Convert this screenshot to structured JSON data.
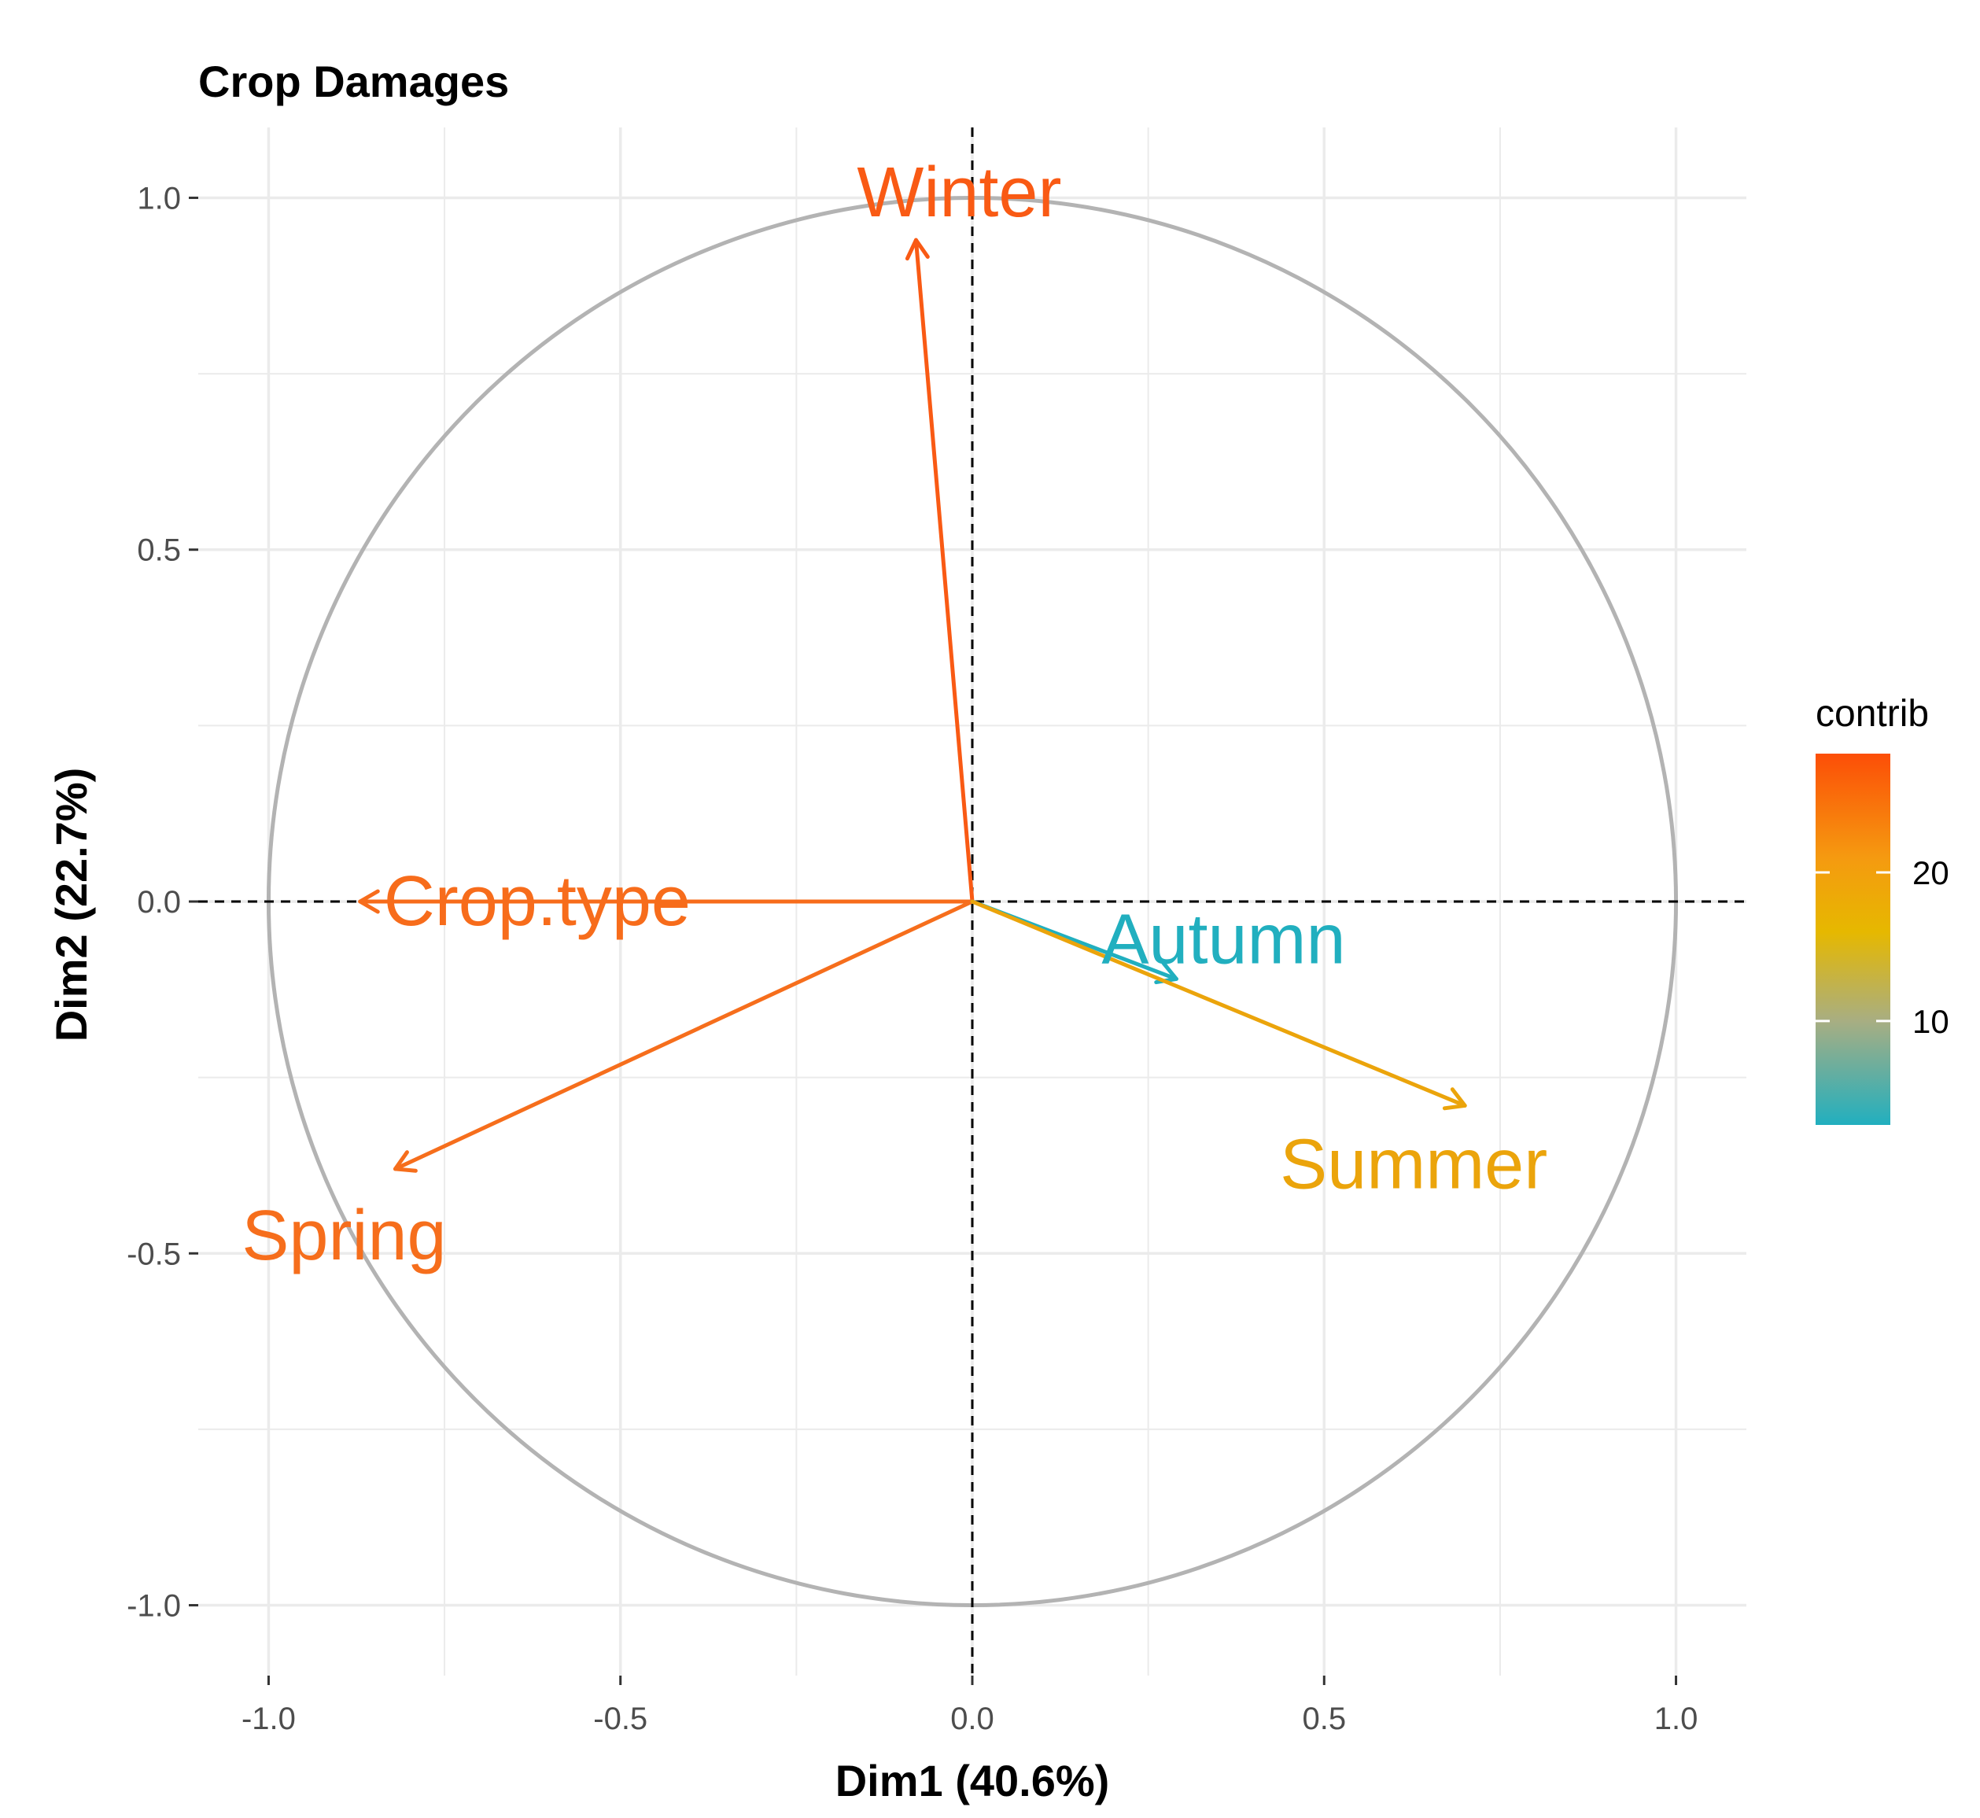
{
  "chart_data": {
    "type": "scatter",
    "subtype": "pca-variable-correlation-circle",
    "title": "Crop Damages",
    "xlabel": "Dim1 (40.6%)",
    "ylabel": "Dim2 (22.7%)",
    "xlim": [
      -1.1,
      1.1
    ],
    "ylim": [
      -1.1,
      1.1
    ],
    "x_ticks": [
      -1.0,
      -0.5,
      0.0,
      0.5,
      1.0
    ],
    "x_tick_labels": [
      "-1.0",
      "-0.5",
      "0.0",
      "0.5",
      "1.0"
    ],
    "y_ticks": [
      -1.0,
      -0.5,
      0.0,
      0.5,
      1.0
    ],
    "y_tick_labels": [
      "-1.0",
      "-0.5",
      "0.0",
      "0.5",
      "1.0"
    ],
    "grid": true,
    "unit_circle": true,
    "reference_lines": "dashed at x=0 and y=0",
    "variables": [
      {
        "label": "Winter",
        "x": -0.08,
        "y": 0.94,
        "contrib": 27,
        "color": "#F95A14"
      },
      {
        "label": "Crop.type",
        "x": -0.87,
        "y": 0.0,
        "contrib": 25,
        "color": "#F76C1B"
      },
      {
        "label": "Spring",
        "x": -0.82,
        "y": -0.38,
        "contrib": 24,
        "color": "#F66E1C"
      },
      {
        "label": "Autumn",
        "x": 0.29,
        "y": -0.11,
        "contrib": 3,
        "color": "#21AFBF"
      },
      {
        "label": "Summer",
        "x": 0.7,
        "y": -0.29,
        "contrib": 19,
        "color": "#EBA40B"
      }
    ],
    "legend": {
      "title": "contrib",
      "placement": "right",
      "range": [
        3,
        28
      ],
      "ticks": [
        10,
        20
      ],
      "tick_labels": [
        "10",
        "20"
      ],
      "gradient": [
        {
          "value": 3,
          "color": "#21AFBF"
        },
        {
          "value": 10,
          "color": "#A8AE82"
        },
        {
          "value": 16,
          "color": "#E6B800"
        },
        {
          "value": 21,
          "color": "#F59A10"
        },
        {
          "value": 28,
          "color": "#FC4E07"
        }
      ]
    },
    "colors": {
      "circle": "#b3b3b3",
      "grid": "#ebebeb",
      "reference_line": "#000000"
    }
  }
}
